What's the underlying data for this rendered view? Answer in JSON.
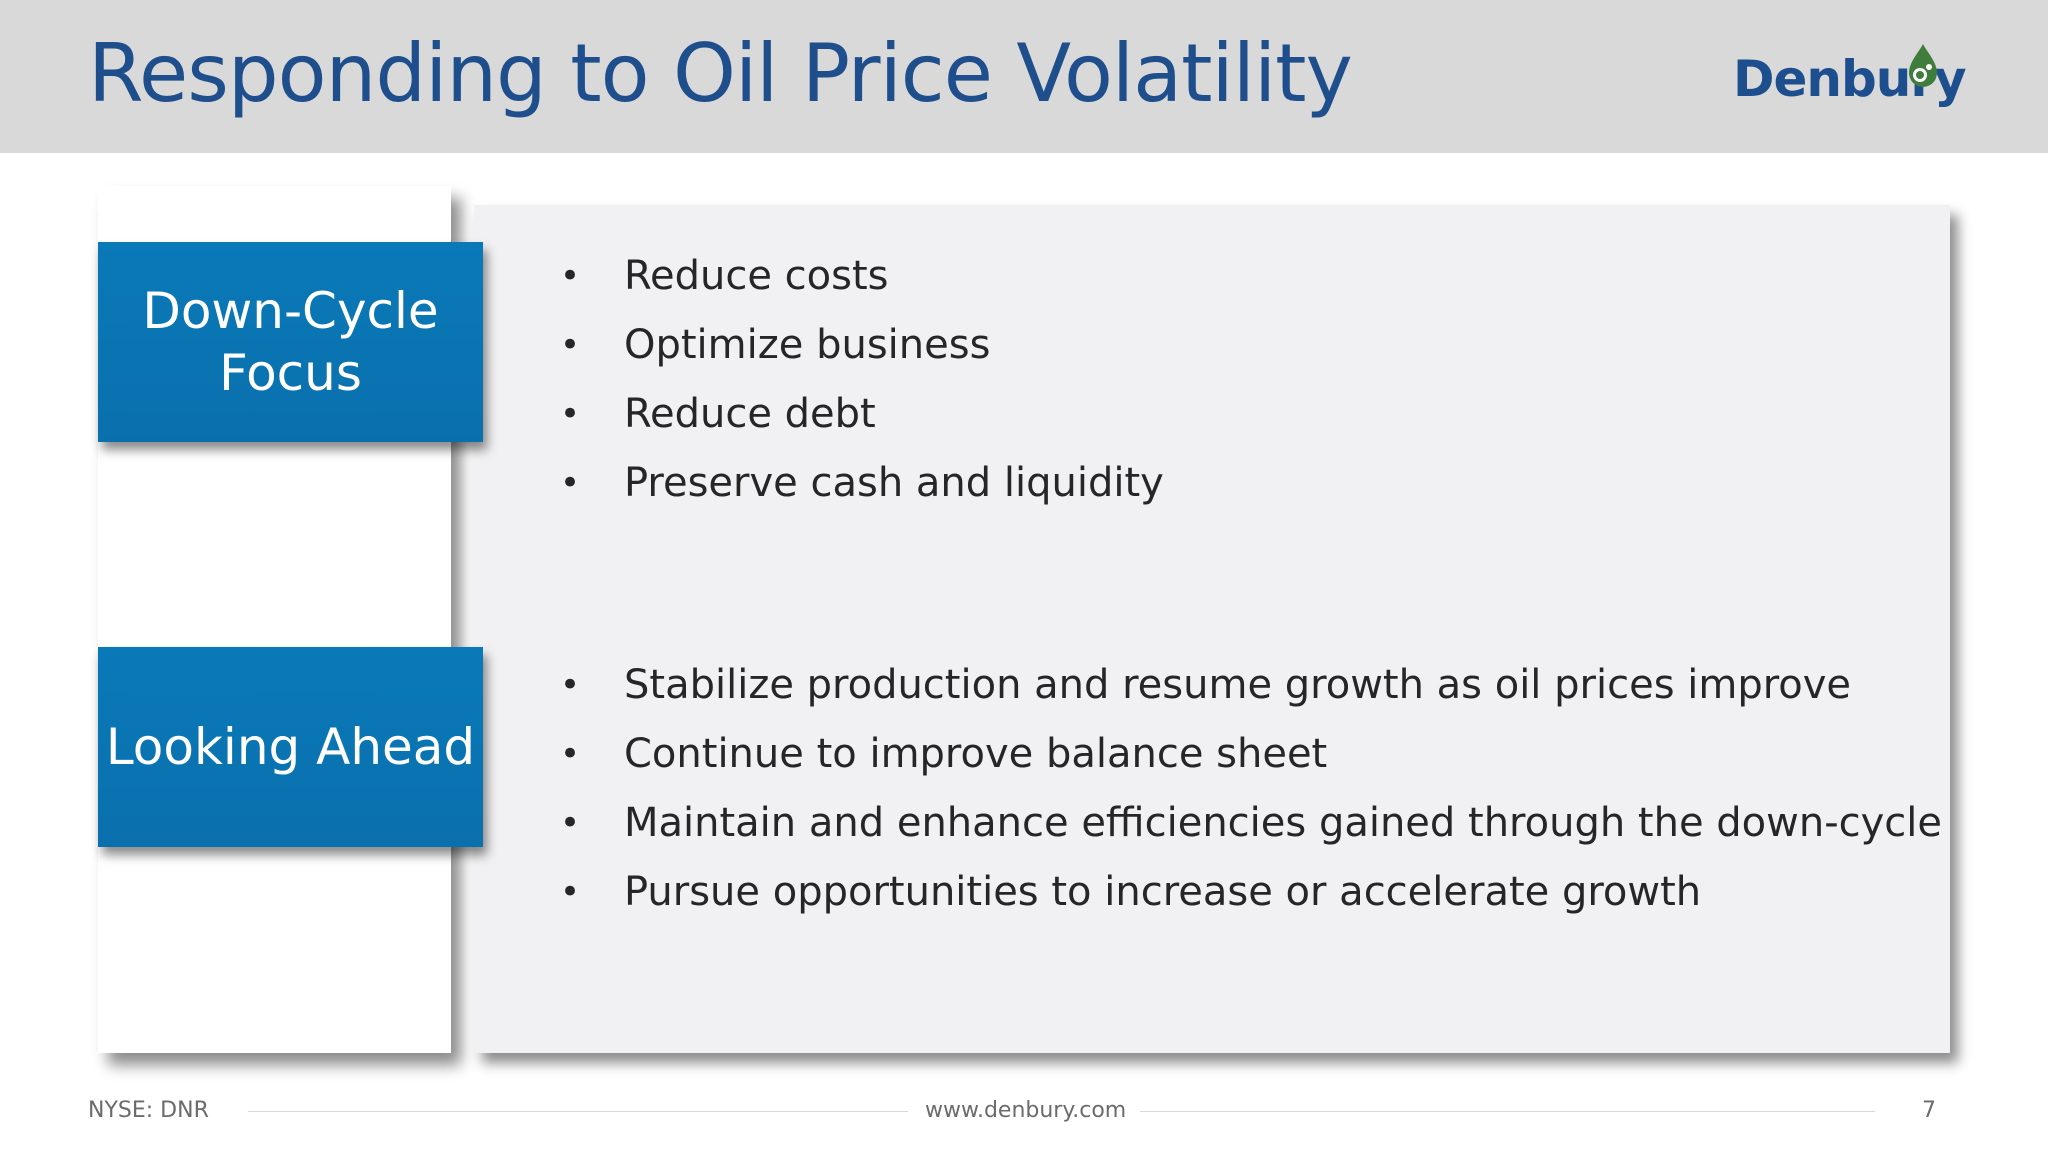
{
  "slide": {
    "title": "Responding to Oil Price Volatility",
    "logo_text": "Denbury",
    "colors": {
      "title": "#1f4e8c",
      "section_box": "#0a79b8",
      "content_panel": "#f1f1f3",
      "title_bar": "#d9d9d9",
      "logo_drop": "#3f7d3c"
    }
  },
  "sections": [
    {
      "label_lines": [
        "Down-Cycle",
        "Focus"
      ],
      "bullets": [
        "Reduce costs",
        "Optimize business",
        "Reduce debt",
        "Preserve cash and liquidity"
      ]
    },
    {
      "label_lines": [
        "Looking Ahead"
      ],
      "bullets": [
        "Stabilize production and resume growth as oil prices improve",
        "Continue to improve balance sheet",
        "Maintain and enhance efficiencies gained through the down-cycle",
        "Pursue opportunities to increase or accelerate growth"
      ]
    }
  ],
  "bullet_glyph": "•",
  "footer": {
    "ticker": "NYSE: DNR",
    "website": "www.denbury.com",
    "page_number": "7"
  },
  "icons": {
    "logo": "oil-drop-icon"
  }
}
